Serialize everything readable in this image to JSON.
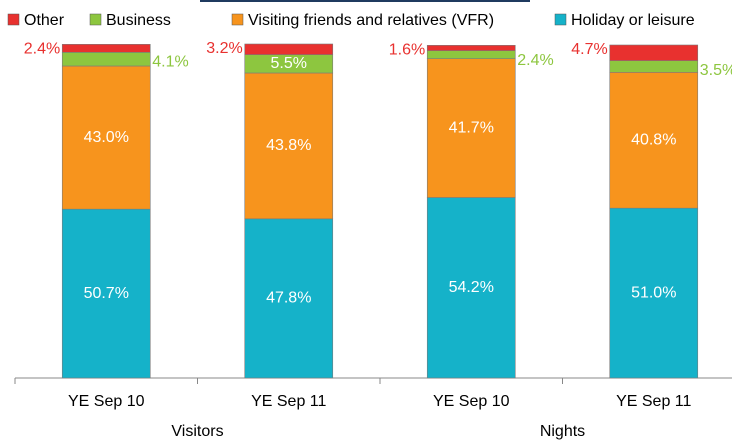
{
  "chart_data": {
    "type": "stacked_bar",
    "categories": [
      "YE Sep 10",
      "YE Sep 11",
      "YE Sep 10",
      "YE Sep 11"
    ],
    "group_labels": [
      "Visitors",
      "Nights"
    ],
    "ylim": [
      0,
      100
    ],
    "series": [
      {
        "name": "Other",
        "color": "#e8312f",
        "values": [
          2.4,
          3.2,
          1.6,
          4.7
        ],
        "value_labels": [
          "2.4%",
          "3.2%",
          "1.6%",
          "4.7%"
        ]
      },
      {
        "name": "Business",
        "color": "#8dc63f",
        "values": [
          4.1,
          5.5,
          2.4,
          3.5
        ],
        "value_labels": [
          "4.1%",
          "5.5%",
          "2.4%",
          "3.5%"
        ]
      },
      {
        "name": "Visiting friends and relatives (VFR)",
        "color": "#f7941d",
        "values": [
          43.0,
          43.8,
          41.7,
          40.8
        ],
        "value_labels": [
          "43.0%",
          "43.8%",
          "41.7%",
          "40.8%"
        ]
      },
      {
        "name": "Holiday or leisure",
        "color": "#15b2c9",
        "values": [
          50.7,
          47.8,
          54.2,
          51.0
        ],
        "value_labels": [
          "50.7%",
          "47.8%",
          "54.2%",
          "51.0%"
        ]
      }
    ]
  }
}
